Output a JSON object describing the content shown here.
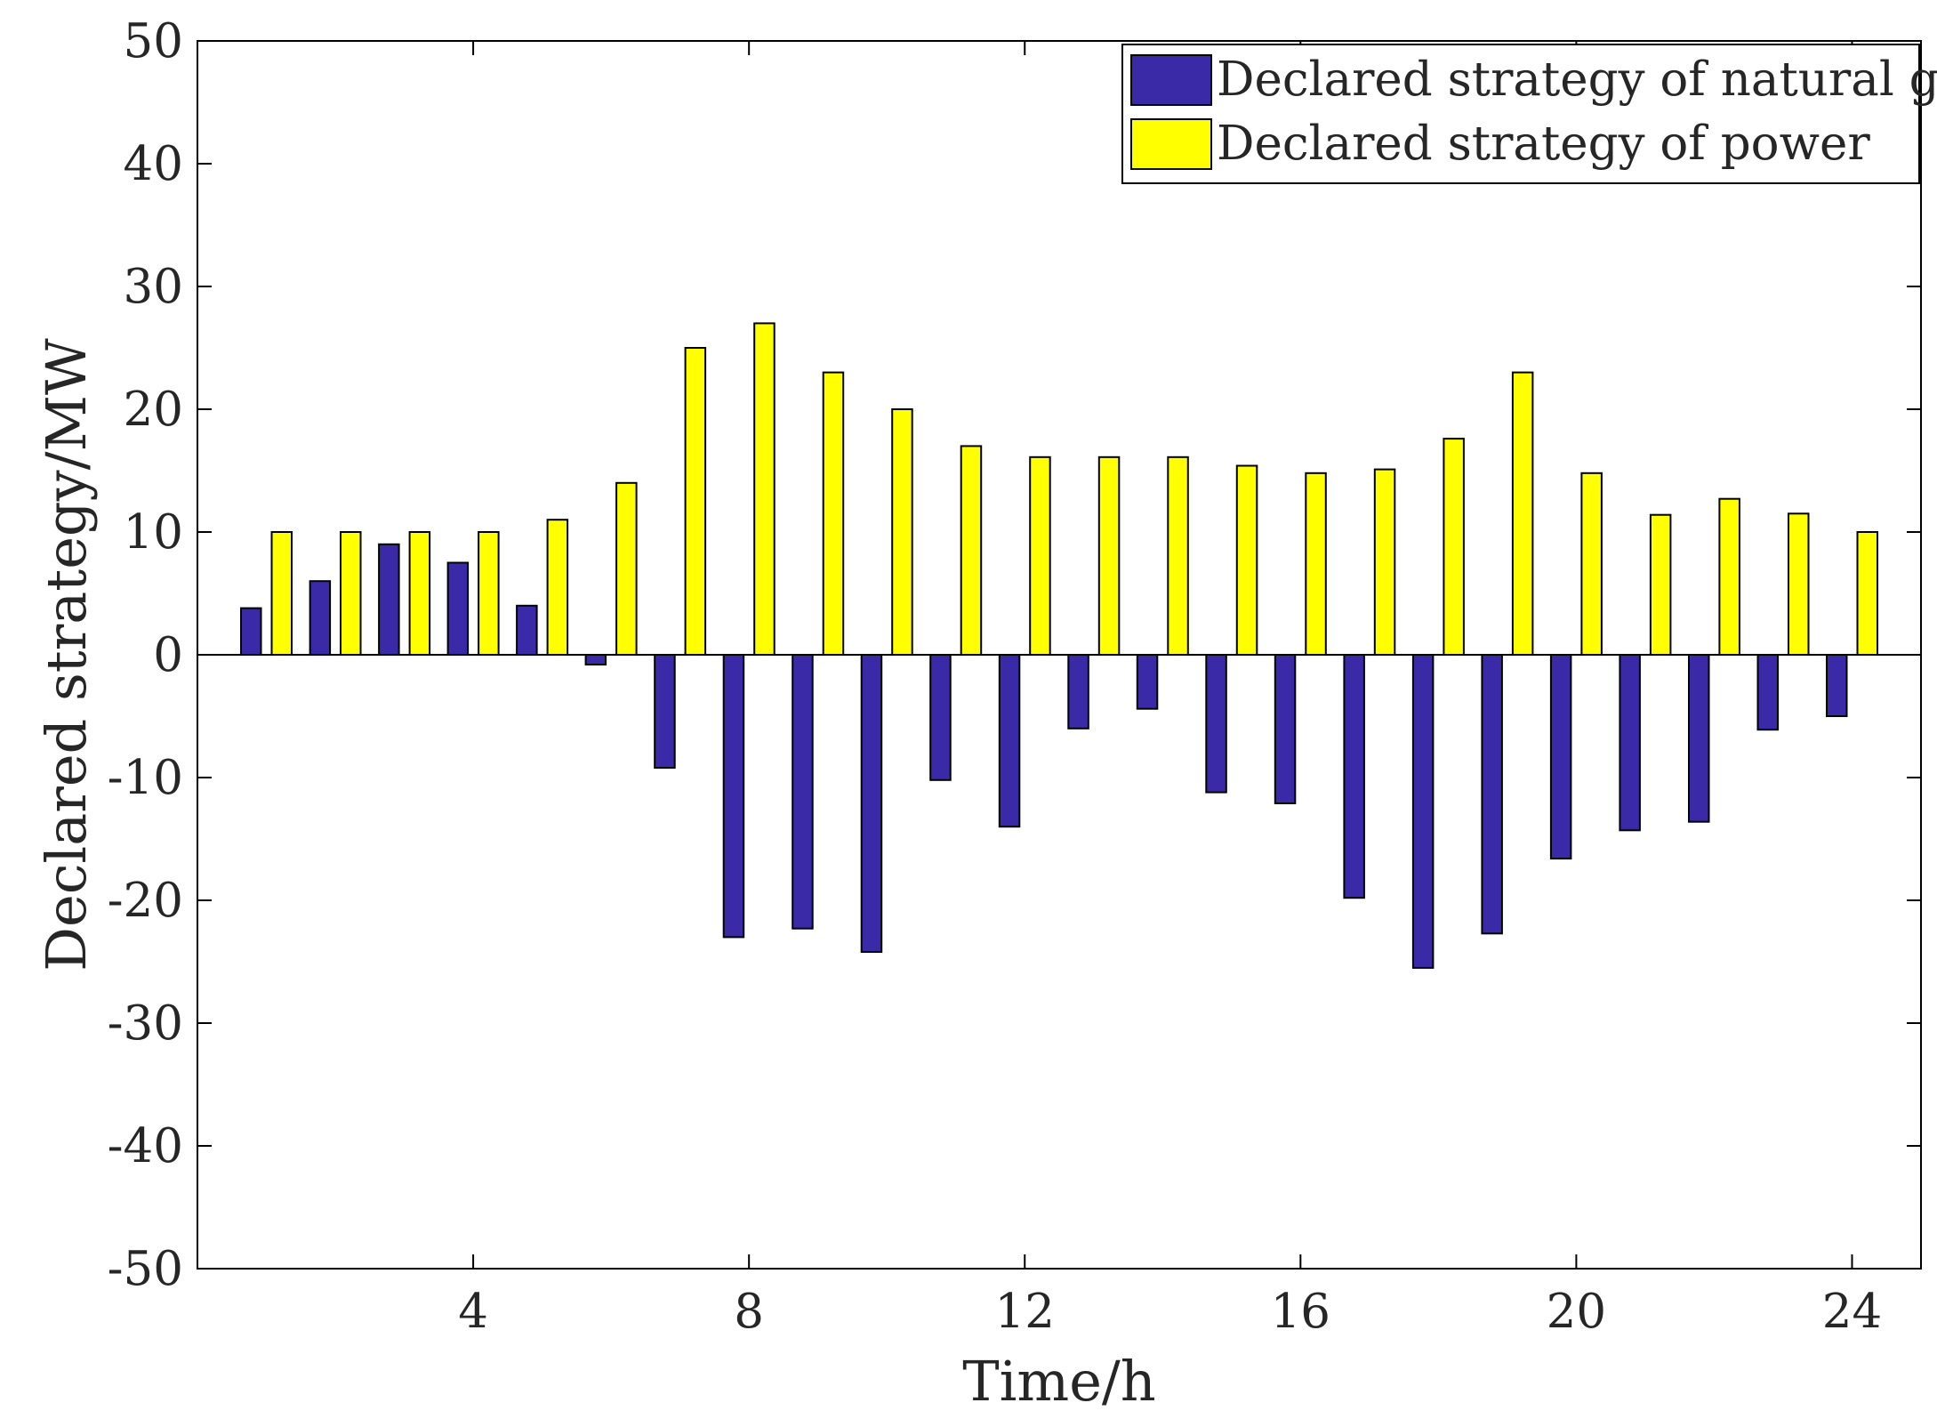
{
  "chart_data": {
    "type": "bar",
    "title": "",
    "xlabel": "Time/h",
    "ylabel": "Declared strategy/MW",
    "x": [
      1,
      2,
      3,
      4,
      5,
      6,
      7,
      8,
      9,
      10,
      11,
      12,
      13,
      14,
      15,
      16,
      17,
      18,
      19,
      20,
      21,
      22,
      23,
      24
    ],
    "xlim": [
      0,
      25
    ],
    "ylim": [
      -50,
      50
    ],
    "x_ticks": [
      4,
      8,
      12,
      16,
      20,
      24
    ],
    "y_ticks": [
      -50,
      -40,
      -30,
      -20,
      -10,
      0,
      10,
      20,
      30,
      40,
      50
    ],
    "x_tick_labels": [
      "4",
      "8",
      "12",
      "16",
      "20",
      "24"
    ],
    "y_tick_labels": [
      "-50",
      "-40",
      "-30",
      "-20",
      "-10",
      "0",
      "10",
      "20",
      "30",
      "40",
      "50"
    ],
    "grid": false,
    "legend_position": "top-right",
    "series": [
      {
        "name": "Declared strategy of natural gas",
        "color": "#3a2aa8",
        "values": [
          3.8,
          6.0,
          9.0,
          7.5,
          4.0,
          -0.8,
          -9.2,
          -23.0,
          -22.3,
          -24.2,
          -10.2,
          -14.0,
          -6.0,
          -4.4,
          -11.2,
          -12.1,
          -19.8,
          -25.5,
          -22.7,
          -16.6,
          -14.3,
          -13.6,
          -6.1,
          -5.0
        ]
      },
      {
        "name": "Declared strategy of power",
        "color": "#ffff00",
        "values": [
          10.0,
          10.0,
          10.0,
          10.0,
          11.0,
          14.0,
          25.0,
          27.0,
          23.0,
          20.0,
          17.0,
          16.1,
          16.1,
          16.1,
          15.4,
          14.8,
          15.1,
          17.6,
          23.0,
          14.8,
          11.4,
          12.7,
          11.5,
          10.0
        ]
      }
    ]
  }
}
